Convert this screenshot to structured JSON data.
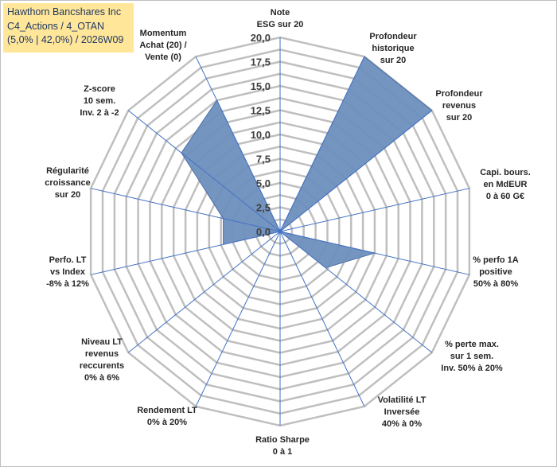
{
  "title_lines": [
    "Hawthorn Bancshares Inc",
    "C4_Actions / 4_OTAN",
    "(5,0% | 42,0%) / 2026W09"
  ],
  "chart_data": {
    "type": "radar",
    "rmin": 0,
    "rmax": 20,
    "step": 1.25,
    "tick_labels": [
      "0,0",
      "2,5",
      "5,0",
      "7,5",
      "10,0",
      "12,5",
      "15,0",
      "17,5",
      "20,0"
    ],
    "axes": [
      {
        "lines": [
          "Note",
          "ESG sur 20"
        ],
        "value": 0
      },
      {
        "lines": [
          "Profondeur",
          "historique",
          "sur 20"
        ],
        "value": 20
      },
      {
        "lines": [
          "Profondeur",
          "revenus",
          "sur 20"
        ],
        "value": 20
      },
      {
        "lines": [
          "Capi. bours.",
          "en MdEUR",
          "0 à 60 G€"
        ],
        "value": 0
      },
      {
        "lines": [
          "% perfo 1A",
          "positive",
          "50% à 80%"
        ],
        "value": 10
      },
      {
        "lines": [
          "% perte max.",
          "sur 1 sem.",
          "Inv. 50% à 20%"
        ],
        "value": 6
      },
      {
        "lines": [
          "Volatilité LT",
          "Inversée",
          "40% à 0%"
        ],
        "value": 0
      },
      {
        "lines": [
          "Ratio Sharpe",
          "0 à 1"
        ],
        "value": 0
      },
      {
        "lines": [
          "Rendement LT",
          "0% à 20%"
        ],
        "value": 0
      },
      {
        "lines": [
          "Niveau LT",
          "revenus",
          "reccurents",
          "0% à 6%"
        ],
        "value": 0
      },
      {
        "lines": [
          "Perfo. LT",
          "vs Index",
          "-8% à 12%"
        ],
        "value": 6
      },
      {
        "lines": [
          "Régularité",
          "croissance",
          "sur 20"
        ],
        "value": 6
      },
      {
        "lines": [
          "Z-score",
          "10 sem.",
          "Inv. 2 à -2"
        ],
        "value": 13
      },
      {
        "lines": [
          "Momentum",
          "Achat (20) /",
          "Vente (0)"
        ],
        "value": 15
      }
    ],
    "colors": {
      "fill": "#6e8fbe",
      "edge": "#4a6fa5",
      "grid": "#bfbfbf",
      "spoke": "#4472c4"
    }
  }
}
